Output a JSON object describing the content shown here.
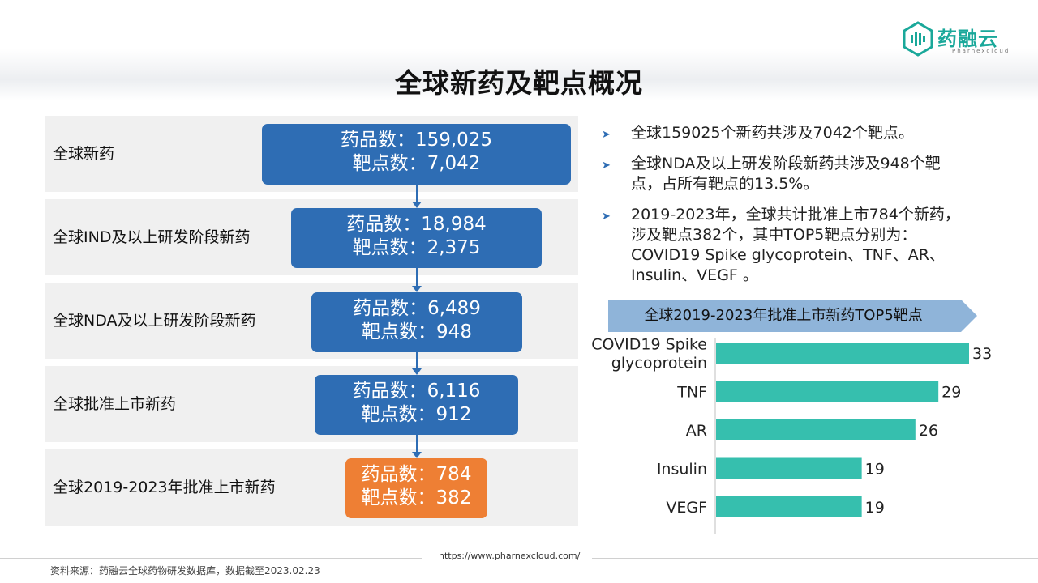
{
  "title": "全球新药及靶点概况",
  "logo": {
    "name": "药融云",
    "sub": "Pharnexcloud"
  },
  "funnel": [
    {
      "label": "全球新药",
      "drugs_line": "药品数：159,025",
      "targets_line": "靶点数：7,042"
    },
    {
      "label": "全球IND及以上研发阶段新药",
      "drugs_line": "药品数：18,984",
      "targets_line": "靶点数：2,375"
    },
    {
      "label": "全球NDA及以上研发阶段新药",
      "drugs_line": "药品数：6,489",
      "targets_line": "靶点数：948"
    },
    {
      "label": "全球批准上市新药",
      "drugs_line": "药品数：6,116",
      "targets_line": "靶点数：912"
    },
    {
      "label": "全球2019-2023年批准上市新药",
      "drugs_line": "药品数：784",
      "targets_line": "靶点数：382"
    }
  ],
  "bullets": [
    {
      "lines": [
        "全球159025个新药共涉及7042个靶点。"
      ]
    },
    {
      "lines": [
        "全球NDA及以上研发阶段新药共涉及948个靶",
        "点，占所有靶点的13.5%。"
      ]
    },
    {
      "lines": [
        "2019-2023年，全球共计批准上市784个新药，",
        "涉及靶点382个，其中TOP5靶点分别为：",
        "COVID19 Spike glycoprotein、TNF、AR、",
        "Insulin、VEGF 。"
      ]
    }
  ],
  "chart_data": {
    "type": "bar",
    "orientation": "horizontal",
    "title": "全球2019-2023年批准上市新药TOP5靶点",
    "categories": [
      [
        "COVID19 Spike",
        "glycoprotein"
      ],
      [
        "TNF"
      ],
      [
        "AR"
      ],
      [
        "Insulin"
      ],
      [
        "VEGF"
      ]
    ],
    "values": [
      33,
      29,
      26,
      19,
      19
    ],
    "bar_color": "#36bfae",
    "grid": false,
    "xlim": [
      0,
      33
    ]
  },
  "footer": {
    "source": "资料来源：药融云全球药物研发数据库，数据截至2023.02.23",
    "url": "https://www.pharnexcloud.com/"
  },
  "colors": {
    "box_blue": "#2e6db4",
    "box_orange": "#ee7f34",
    "accent_teal": "#1aa89a"
  }
}
